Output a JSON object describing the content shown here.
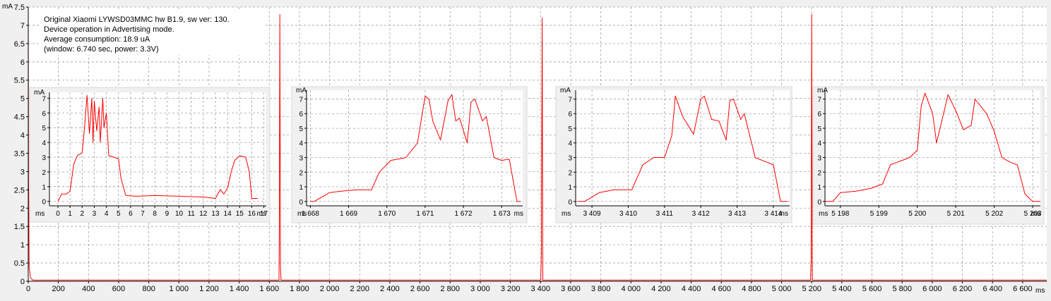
{
  "info_box": {
    "line1": "Original Xiaomi LYWSD03MMC hw B1.9, sw ver: 130.",
    "line2": "Device operation in Advertising mode.",
    "line3": "Average consumption: 18.9 uA",
    "line4": "(window: 6.740 sec, power: 3.3V)"
  },
  "colors": {
    "trace": "#ff0000",
    "grid": "#a0a0a0",
    "background": "#ffffff",
    "frame": "#f0f0f0"
  },
  "chart_data": [
    {
      "type": "line",
      "ylabel": "mA",
      "xlabel": "ms",
      "xlim": [
        0,
        6760
      ],
      "ylim": [
        0,
        7.5
      ],
      "x_ticks": [
        0,
        200,
        400,
        600,
        800,
        1000,
        1200,
        1400,
        1600,
        1800,
        2000,
        2200,
        2400,
        2600,
        2800,
        3000,
        3200,
        3400,
        3600,
        3800,
        4000,
        4200,
        4400,
        4600,
        4800,
        5000,
        5200,
        5400,
        5600,
        5800,
        6000,
        6200,
        6400,
        6600
      ],
      "x_tick_labels": [
        "0",
        "200",
        "400",
        "600",
        "800",
        "1 000",
        "1 200",
        "1 400",
        "1 600",
        "1 800",
        "2 000",
        "2 200",
        "2 400",
        "2 600",
        "2 800",
        "3 000",
        "3 200",
        "3 400",
        "3 600",
        "3 800",
        "4 000",
        "4 200",
        "4 400",
        "4 600",
        "4 800",
        "5 000",
        "5 200",
        "5 400",
        "5 600",
        "5 800",
        "6 000",
        "6 200",
        "6 400",
        "6 600"
      ],
      "y_ticks": [
        0,
        0.5,
        1,
        1.5,
        2,
        2.5,
        3,
        3.5,
        4,
        4.5,
        5,
        5.5,
        6,
        6.5,
        7,
        7.5
      ],
      "y_tick_labels": [
        "0",
        "0.5",
        "1",
        "1.5",
        "2",
        "2.5",
        "3",
        "3.5",
        "4",
        "4.5",
        "5",
        "5.5",
        "6",
        "6.5",
        "7",
        "7.5"
      ],
      "grid": true,
      "series": [
        {
          "values": [
            [
              0,
              7.5
            ],
            [
              2,
              2.8
            ],
            [
              6,
              0.4
            ],
            [
              14,
              0.1
            ],
            [
              30,
              0.03
            ],
            [
              1664,
              0.03
            ],
            [
              1666,
              1.2
            ],
            [
              1670,
              7.3
            ],
            [
              1674,
              0.4
            ],
            [
              1678,
              0.03
            ],
            [
              3402,
              0.03
            ],
            [
              3406,
              0.8
            ],
            [
              3411,
              7.2
            ],
            [
              3415,
              0.03
            ],
            [
              5192,
              0.03
            ],
            [
              5196,
              0.6
            ],
            [
              5200,
              7.3
            ],
            [
              5204,
              0.03
            ],
            [
              6760,
              0.03
            ]
          ]
        }
      ]
    },
    {
      "type": "line",
      "ylabel": "mA",
      "xlabel": "ms",
      "xlim": [
        -0.7,
        17.2
      ],
      "ylim": [
        -0.3,
        7.4
      ],
      "x_ticks": [
        0,
        1,
        2,
        3,
        4,
        5,
        6,
        7,
        8,
        9,
        10,
        11,
        12,
        13,
        14,
        15,
        16,
        17
      ],
      "x_tick_labels": [
        "0",
        "1",
        "2",
        "3",
        "4",
        "5",
        "6",
        "7",
        "8",
        "9",
        "10",
        "11",
        "12",
        "13",
        "14",
        "15",
        "16",
        "17"
      ],
      "y_ticks": [
        0,
        1,
        2,
        3,
        4,
        5,
        6,
        7
      ],
      "y_tick_labels": [
        "0",
        "1",
        "2",
        "3",
        "4",
        "5",
        "6",
        "7"
      ],
      "grid": true,
      "series": [
        {
          "values": [
            [
              0,
              0
            ],
            [
              0.3,
              0.5
            ],
            [
              0.7,
              0.5
            ],
            [
              1.0,
              0.7
            ],
            [
              1.3,
              2.5
            ],
            [
              1.6,
              3.1
            ],
            [
              2.0,
              3.3
            ],
            [
              2.2,
              5.0
            ],
            [
              2.4,
              7.2
            ],
            [
              2.6,
              4.6
            ],
            [
              2.8,
              7.0
            ],
            [
              2.9,
              4.0
            ],
            [
              3.0,
              6.8
            ],
            [
              3.2,
              4.8
            ],
            [
              3.4,
              6.4
            ],
            [
              3.5,
              4.0
            ],
            [
              3.7,
              7.0
            ],
            [
              3.8,
              5.0
            ],
            [
              4.0,
              6.0
            ],
            [
              4.2,
              3.1
            ],
            [
              4.6,
              3.0
            ],
            [
              5.0,
              2.9
            ],
            [
              5.2,
              1.6
            ],
            [
              5.6,
              0.4
            ],
            [
              6.5,
              0.35
            ],
            [
              8.0,
              0.4
            ],
            [
              10.0,
              0.35
            ],
            [
              12.0,
              0.3
            ],
            [
              13.0,
              0.2
            ],
            [
              13.4,
              0.8
            ],
            [
              13.7,
              0.5
            ],
            [
              14.0,
              0.9
            ],
            [
              14.3,
              2.0
            ],
            [
              14.6,
              2.8
            ],
            [
              15.0,
              3.1
            ],
            [
              15.5,
              3.0
            ],
            [
              15.8,
              2.0
            ],
            [
              16.0,
              0.2
            ],
            [
              16.5,
              0.2
            ]
          ]
        }
      ]
    },
    {
      "type": "line",
      "ylabel": "mA",
      "xlabel": "ms",
      "xlim": [
        1667.9,
        1673.55
      ],
      "ylim": [
        -0.3,
        7.6
      ],
      "x_ticks": [
        1668,
        1669,
        1670,
        1671,
        1672,
        1673
      ],
      "x_tick_labels": [
        "1 668",
        "1 669",
        "1 670",
        "1 671",
        "1 672",
        "1 673"
      ],
      "y_ticks": [
        0,
        1,
        2,
        3,
        4,
        5,
        6,
        7
      ],
      "y_tick_labels": [
        "0",
        "1",
        "2",
        "3",
        "4",
        "5",
        "6",
        "7"
      ],
      "grid": true,
      "series": [
        {
          "values": [
            [
              1668.0,
              0
            ],
            [
              1668.1,
              0
            ],
            [
              1668.5,
              0.6
            ],
            [
              1668.8,
              0.7
            ],
            [
              1669.2,
              0.8
            ],
            [
              1669.6,
              0.8
            ],
            [
              1669.8,
              2.0
            ],
            [
              1670.1,
              2.8
            ],
            [
              1670.5,
              3.0
            ],
            [
              1670.8,
              4.0
            ],
            [
              1671.0,
              7.2
            ],
            [
              1671.1,
              7.0
            ],
            [
              1671.2,
              5.5
            ],
            [
              1671.4,
              4.2
            ],
            [
              1671.6,
              6.9
            ],
            [
              1671.7,
              7.3
            ],
            [
              1671.8,
              5.5
            ],
            [
              1671.9,
              5.7
            ],
            [
              1672.1,
              4.0
            ],
            [
              1672.2,
              6.8
            ],
            [
              1672.3,
              7.0
            ],
            [
              1672.5,
              5.5
            ],
            [
              1672.6,
              5.8
            ],
            [
              1672.8,
              3.0
            ],
            [
              1673.0,
              2.8
            ],
            [
              1673.2,
              2.9
            ],
            [
              1673.4,
              0
            ],
            [
              1673.5,
              0
            ]
          ]
        }
      ]
    },
    {
      "type": "line",
      "ylabel": "mA",
      "xlabel": "ms",
      "xlim": [
        3408.55,
        3414.45
      ],
      "ylim": [
        -0.3,
        7.6
      ],
      "x_ticks": [
        3409,
        3410,
        3411,
        3412,
        3413,
        3414
      ],
      "x_tick_labels": [
        "3 409",
        "3 410",
        "3 411",
        "3 412",
        "3 413",
        "3 414"
      ],
      "y_ticks": [
        0,
        1,
        2,
        3,
        4,
        5,
        6,
        7
      ],
      "y_tick_labels": [
        "0",
        "1",
        "2",
        "3",
        "4",
        "5",
        "6",
        "7"
      ],
      "grid": true,
      "series": [
        {
          "values": [
            [
              3408.6,
              0
            ],
            [
              3408.8,
              0
            ],
            [
              3409.2,
              0.6
            ],
            [
              3409.6,
              0.8
            ],
            [
              3410.1,
              0.8
            ],
            [
              3410.4,
              2.5
            ],
            [
              3410.7,
              3.0
            ],
            [
              3411.0,
              3.0
            ],
            [
              3411.2,
              4.5
            ],
            [
              3411.3,
              7.2
            ],
            [
              3411.5,
              5.8
            ],
            [
              3411.8,
              4.6
            ],
            [
              3412.0,
              7.0
            ],
            [
              3412.1,
              7.2
            ],
            [
              3412.3,
              5.6
            ],
            [
              3412.5,
              5.5
            ],
            [
              3412.7,
              4.2
            ],
            [
              3412.8,
              6.9
            ],
            [
              3412.9,
              7.0
            ],
            [
              3413.1,
              5.6
            ],
            [
              3413.2,
              6.0
            ],
            [
              3413.5,
              3.0
            ],
            [
              3413.8,
              2.7
            ],
            [
              3414.0,
              2.5
            ],
            [
              3414.2,
              0
            ],
            [
              3414.4,
              0
            ]
          ]
        }
      ]
    },
    {
      "type": "line",
      "ylabel": "mA",
      "xlabel": "ms",
      "xlim": [
        5197.6,
        5203.2
      ],
      "ylim": [
        -0.3,
        7.6
      ],
      "x_ticks": [
        5198,
        5199,
        5200,
        5201,
        5202,
        5203
      ],
      "x_tick_labels": [
        "5 198",
        "5 199",
        "5 200",
        "5 201",
        "5 202",
        "5 203"
      ],
      "y_ticks": [
        0,
        1,
        2,
        3,
        4,
        5,
        6,
        7
      ],
      "y_tick_labels": [
        "0",
        "1",
        "2",
        "3",
        "4",
        "5",
        "6",
        "7"
      ],
      "grid": true,
      "series": [
        {
          "values": [
            [
              5197.6,
              0
            ],
            [
              5197.8,
              0
            ],
            [
              5198.0,
              0.6
            ],
            [
              5198.4,
              0.7
            ],
            [
              5198.8,
              0.9
            ],
            [
              5199.1,
              1.2
            ],
            [
              5199.3,
              2.5
            ],
            [
              5199.6,
              2.8
            ],
            [
              5199.8,
              3.0
            ],
            [
              5200.0,
              3.5
            ],
            [
              5200.1,
              6.5
            ],
            [
              5200.2,
              7.4
            ],
            [
              5200.4,
              6.0
            ],
            [
              5200.5,
              4.0
            ],
            [
              5200.8,
              7.3
            ],
            [
              5201.0,
              6.2
            ],
            [
              5201.2,
              4.9
            ],
            [
              5201.4,
              5.2
            ],
            [
              5201.5,
              7.0
            ],
            [
              5201.8,
              6.0
            ],
            [
              5202.0,
              4.8
            ],
            [
              5202.2,
              3.0
            ],
            [
              5202.4,
              2.7
            ],
            [
              5202.6,
              2.5
            ],
            [
              5202.8,
              0.5
            ],
            [
              5203.0,
              0
            ],
            [
              5203.2,
              0
            ]
          ]
        }
      ]
    }
  ]
}
